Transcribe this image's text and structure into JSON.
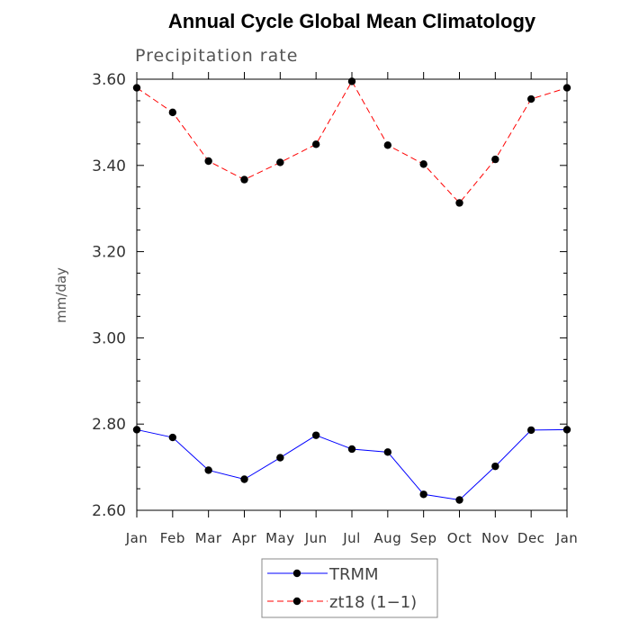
{
  "chart_data": {
    "type": "line",
    "title": "Annual Cycle Global Mean Climatology",
    "subtitle": "Precipitation rate",
    "xlabel": "",
    "ylabel": "mm/day",
    "ylim": [
      2.6,
      3.6
    ],
    "yticks": [
      "2.60",
      "2.80",
      "3.00",
      "3.20",
      "3.40",
      "3.60"
    ],
    "ytick_values": [
      2.6,
      2.8,
      3.0,
      3.2,
      3.4,
      3.6
    ],
    "categories": [
      "Jan",
      "Feb",
      "Mar",
      "Apr",
      "May",
      "Jun",
      "Jul",
      "Aug",
      "Sep",
      "Oct",
      "Nov",
      "Dec",
      "Jan"
    ],
    "grid": false,
    "legend_position": "bottom",
    "series": [
      {
        "name": "TRMM",
        "color": "#0000ff",
        "line_style": "solid",
        "marker": "filled-circle",
        "values": [
          2.787,
          2.769,
          2.693,
          2.672,
          2.722,
          2.774,
          2.742,
          2.735,
          2.637,
          2.624,
          2.702,
          2.786,
          2.787
        ]
      },
      {
        "name": "zt18 (1−1)",
        "color": "#ff0000",
        "line_style": "dashed",
        "marker": "filled-circle",
        "values": [
          3.58,
          3.523,
          3.41,
          3.367,
          3.407,
          3.449,
          3.595,
          3.447,
          3.403,
          3.313,
          3.414,
          3.554,
          3.58
        ]
      }
    ]
  }
}
